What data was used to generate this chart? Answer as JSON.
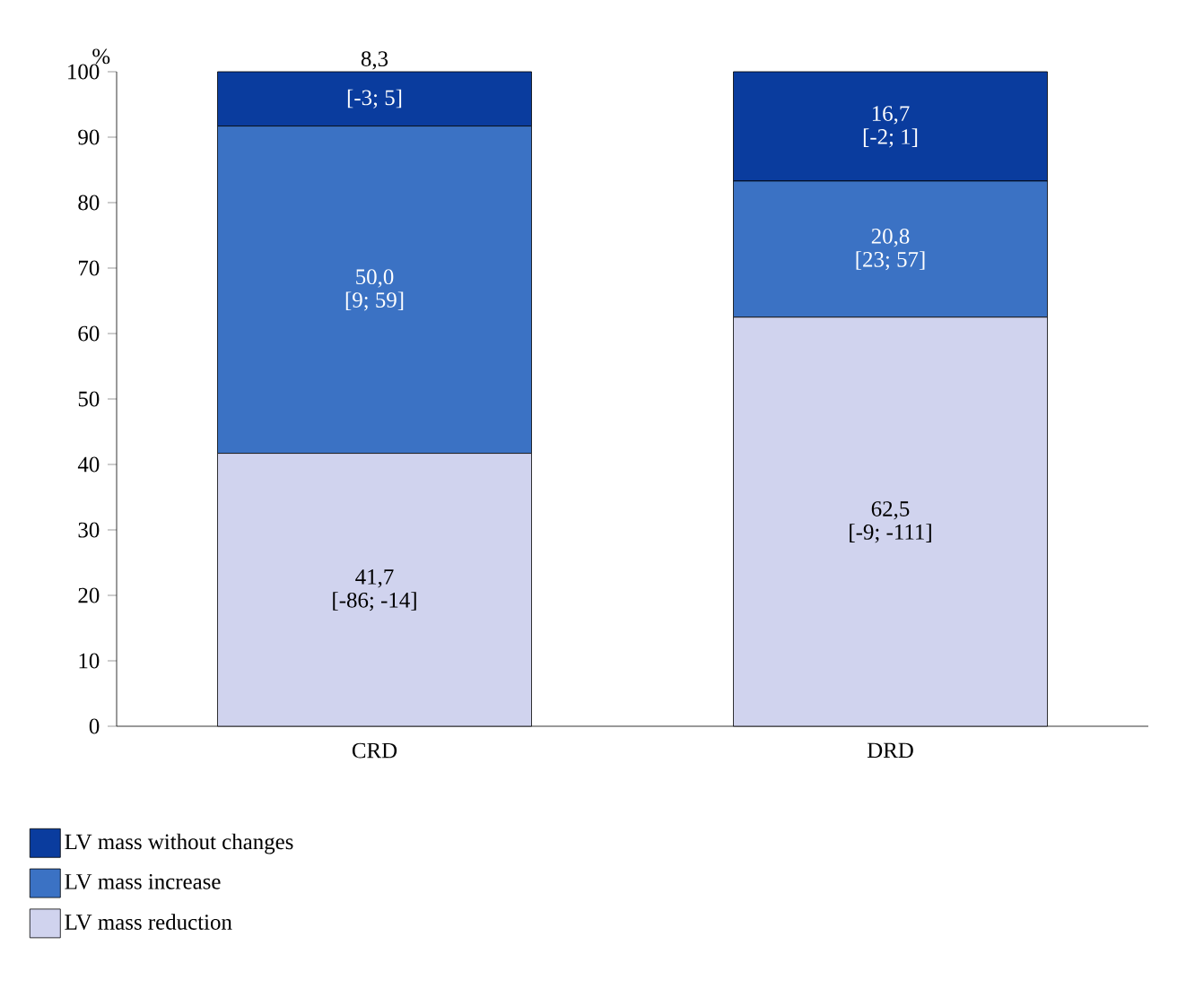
{
  "chart_data": {
    "type": "bar",
    "stacked": true,
    "ylabel": "%",
    "categories": [
      "CRD",
      "DRD"
    ],
    "ylim": [
      0,
      100
    ],
    "yticks": [
      0,
      10,
      20,
      30,
      40,
      50,
      60,
      70,
      80,
      90,
      100
    ],
    "legend": "bottom",
    "series": [
      {
        "name": "LV mass reduction",
        "color": "#d0d3ee",
        "values": [
          41.7,
          62.5
        ],
        "value_labels": [
          "41,7",
          "62,5"
        ]
      },
      {
        "name": "LV mass increase",
        "color": "#3b72c4",
        "values": [
          50.0,
          20.8
        ],
        "value_labels": [
          "50,0",
          "20,8"
        ]
      },
      {
        "name": "LV mass without changes",
        "color": "#0a3c9e",
        "values": [
          8.3,
          16.7
        ],
        "value_labels": [
          "8,3",
          "16,7"
        ]
      }
    ],
    "annotations": [
      "[-86; -14]",
      "[-9; -111]",
      "[9; 59]",
      "[23; 57]",
      "[-3; 5]",
      "[-2; 1]"
    ]
  }
}
